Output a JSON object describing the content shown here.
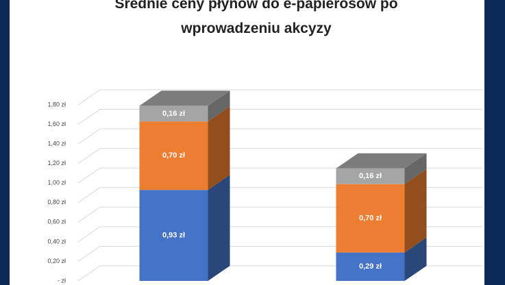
{
  "chart_data": {
    "type": "bar3d_stacked",
    "title": "Średnie ceny płynów do e-papierosów po wprowadzeniu akcyzy",
    "categories": [
      null,
      null
    ],
    "series": [
      {
        "color": "#4472c4",
        "values": [
          0.93,
          0.29
        ],
        "value_labels": [
          "0,93 zł",
          "0,29 zł"
        ]
      },
      {
        "color": "#ed7d31",
        "values": [
          0.7,
          0.7
        ],
        "value_labels": [
          "0,70 zł",
          "0,70 zł"
        ]
      },
      {
        "color": "#a5a5a5",
        "values": [
          0.16,
          0.16
        ],
        "value_labels": [
          "0,16 zł",
          "0,16 zł"
        ]
      }
    ],
    "ylim": [
      0,
      1.8
    ],
    "yticks": [
      {
        "value": 0,
        "label": "- zł"
      },
      {
        "value": 0.2,
        "label": "0,20 zł"
      },
      {
        "value": 0.4,
        "label": "0,40 zł"
      },
      {
        "value": 0.6,
        "label": "0,60 zł"
      },
      {
        "value": 0.8,
        "label": "0,80 zł"
      },
      {
        "value": 1.0,
        "label": "1,00 zł"
      },
      {
        "value": 1.2,
        "label": "1,20 zł"
      },
      {
        "value": 1.4,
        "label": "1,40 zł"
      },
      {
        "value": 1.6,
        "label": "1,60 zł"
      },
      {
        "value": 1.8,
        "label": "1,80 zł"
      }
    ],
    "grid": true
  }
}
